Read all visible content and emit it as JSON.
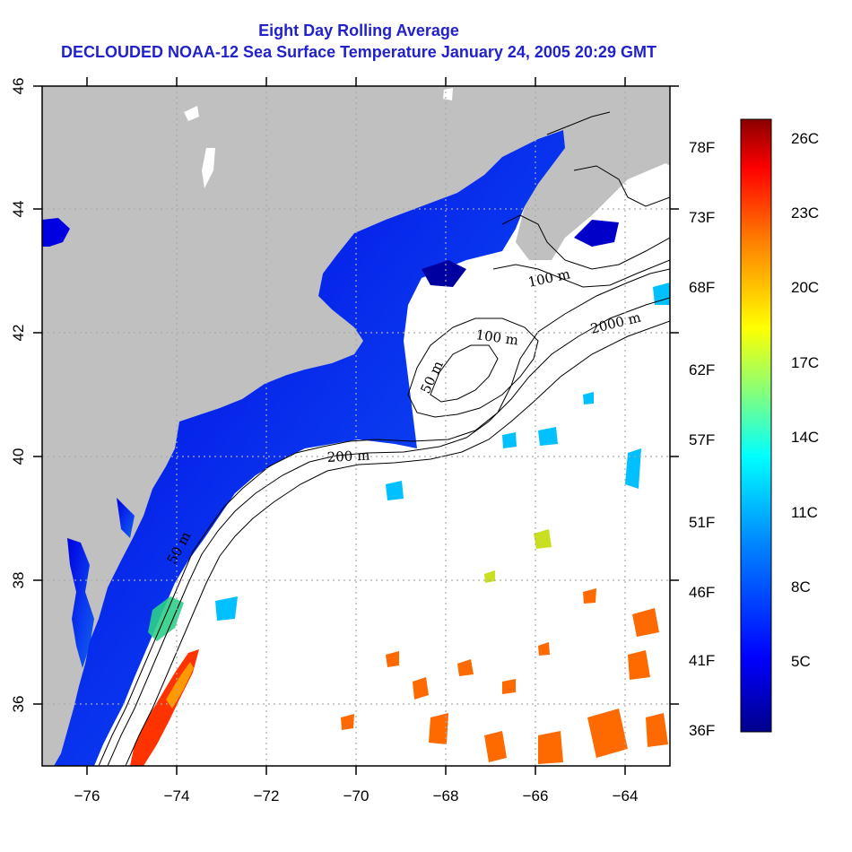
{
  "title": "Eight Day Rolling Average",
  "subtitle": "DECLOUDED NOAA-12 Sea Surface Temperature January 24, 2005 20:29 GMT",
  "map": {
    "lon_range": [
      -77,
      -63
    ],
    "lat_range": [
      35,
      46
    ],
    "x_ticks": [
      "−76",
      "−74",
      "−72",
      "−70",
      "−68",
      "−66",
      "−64"
    ],
    "y_ticks": [
      "36",
      "38",
      "40",
      "42",
      "44",
      "46"
    ],
    "grid": "dotted",
    "land_color": "#c0c0c0",
    "contour_labels": {
      "c50a": "50 m",
      "c50b": "50 m",
      "c100": "100 m",
      "c100b": "100 m",
      "c200": "200 m",
      "c2000": "2000 m"
    }
  },
  "colorbar": {
    "celsius": [
      "26C",
      "23C",
      "20C",
      "17C",
      "14C",
      "11C",
      "8C",
      "5C"
    ],
    "fahrenheit": [
      "78F",
      "73F",
      "68F",
      "62F",
      "57F",
      "51F",
      "46F",
      "41F",
      "36F"
    ],
    "scale": [
      "#00008b",
      "#0000ff",
      "#0080ff",
      "#00ffff",
      "#80ff80",
      "#ffff00",
      "#ff8000",
      "#ff0000",
      "#8b0000"
    ]
  }
}
